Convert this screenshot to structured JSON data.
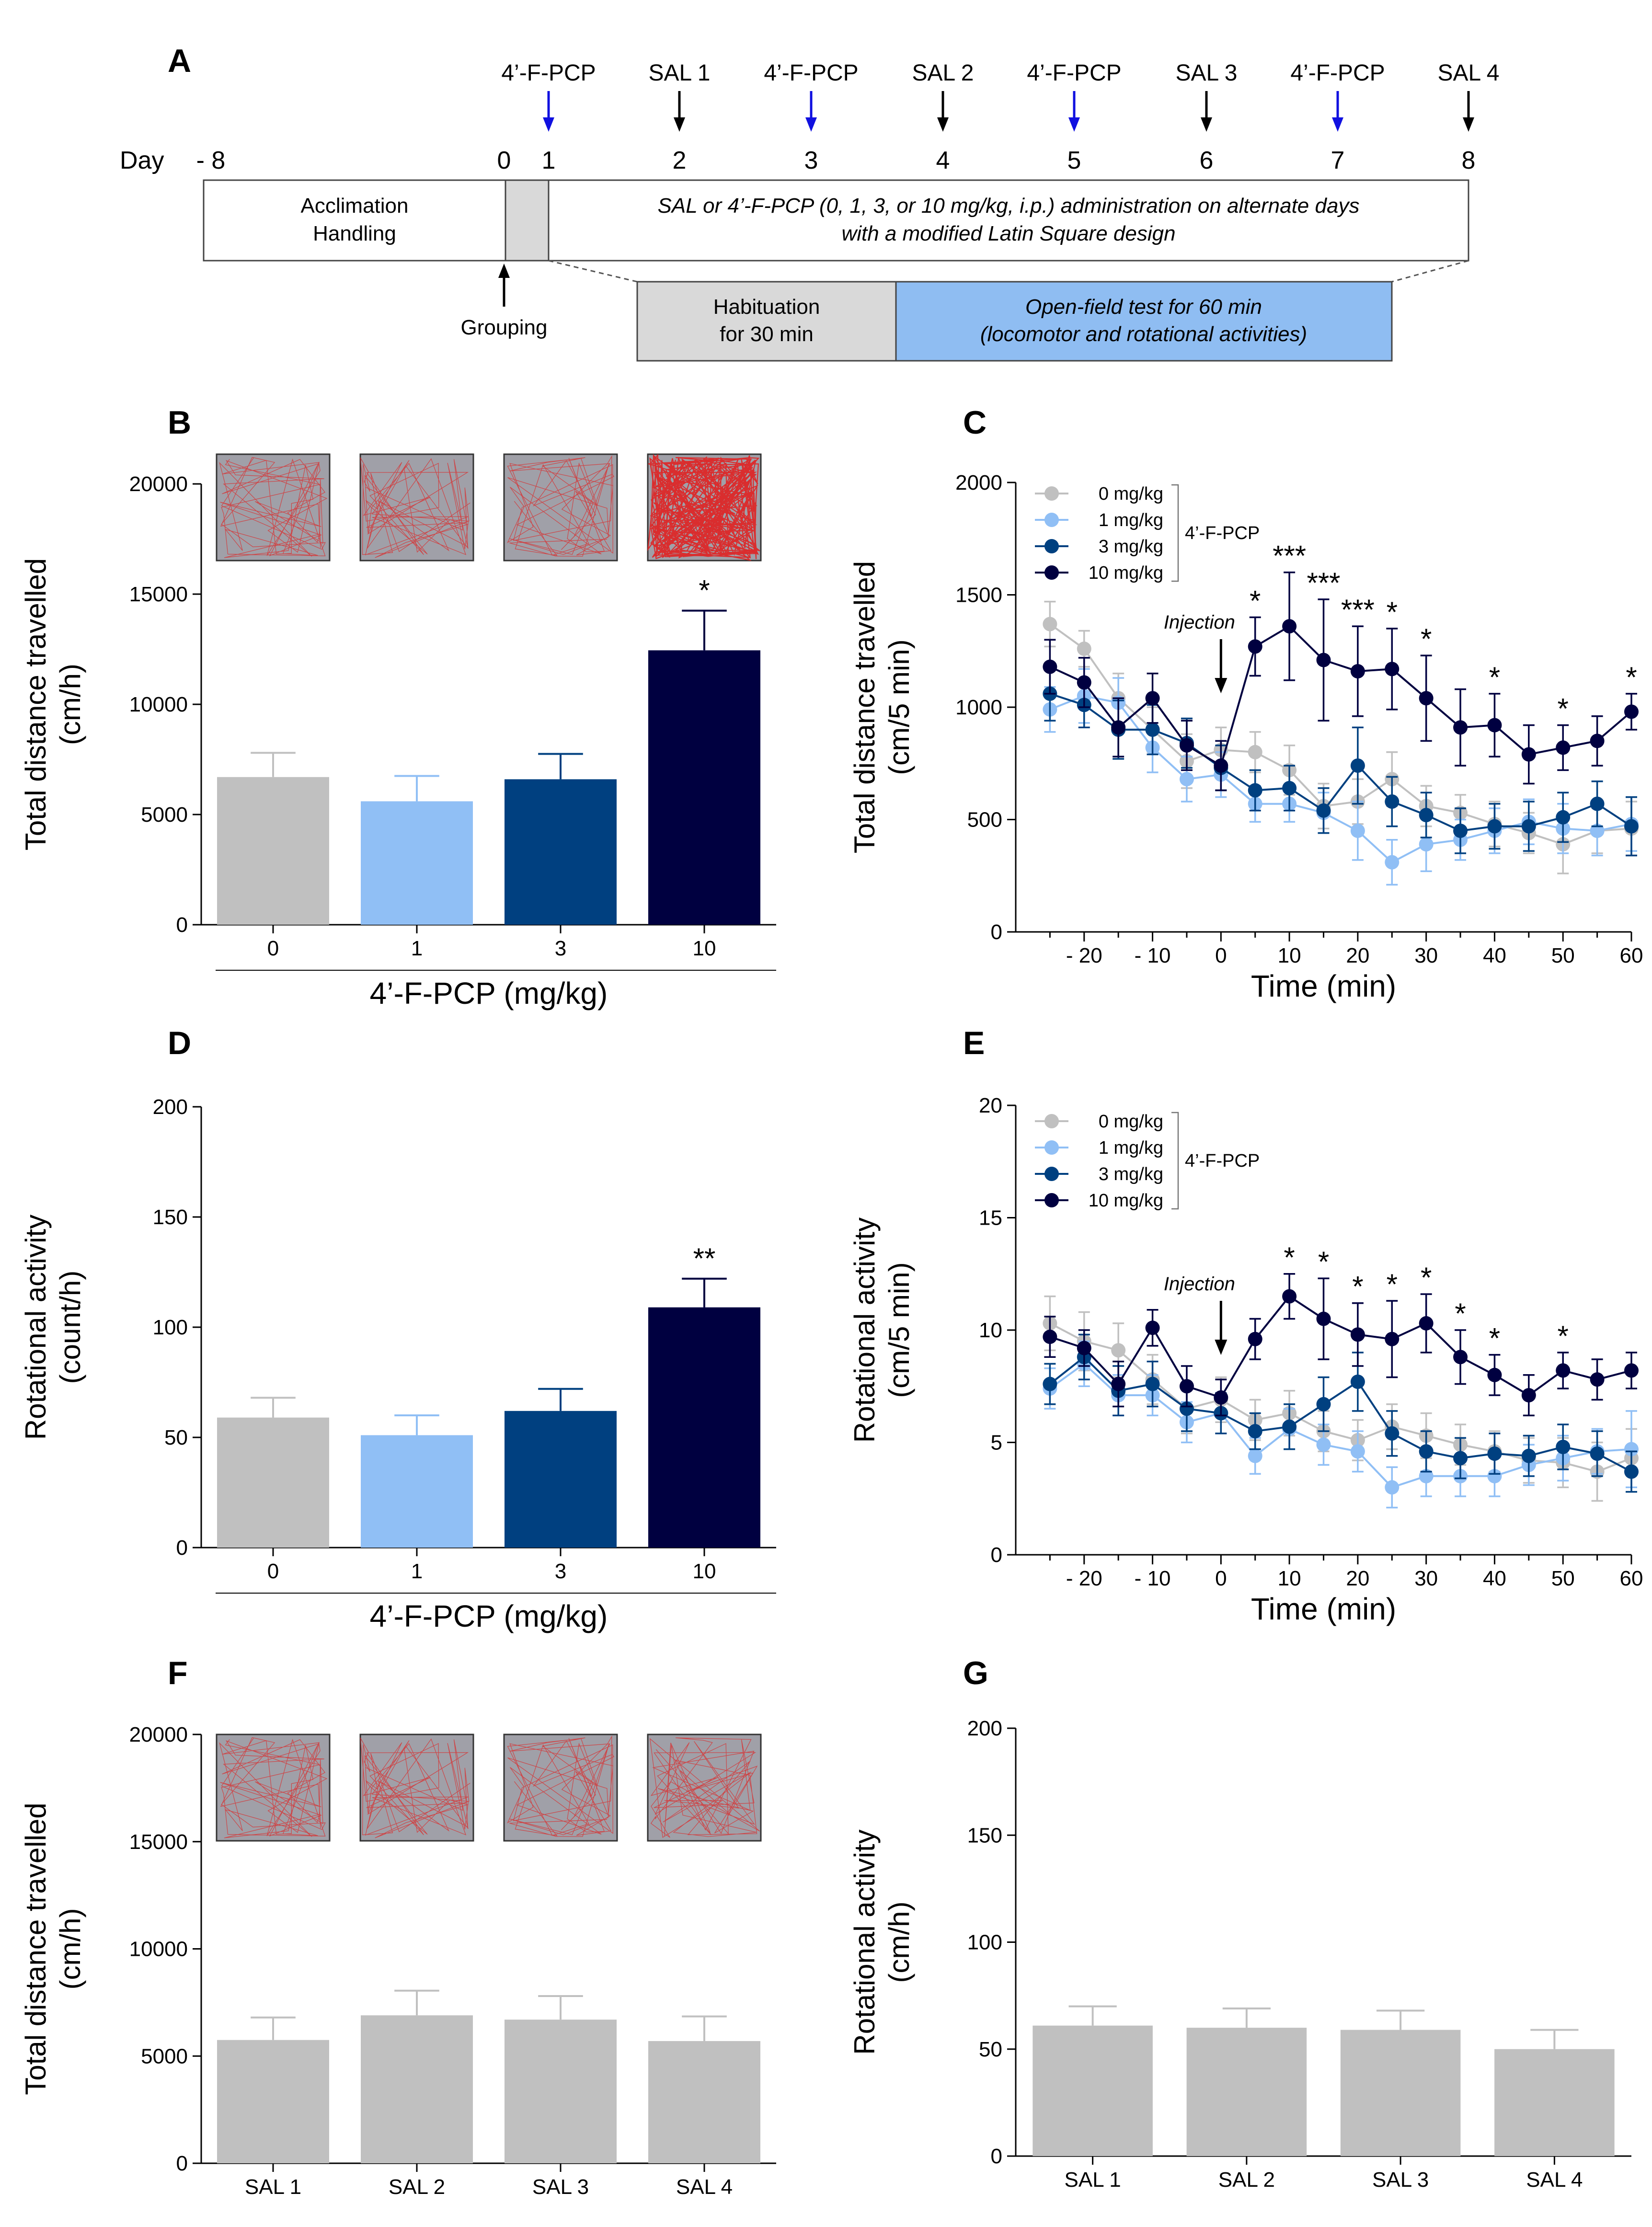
{
  "colors": {
    "c0": "#c0c0c0",
    "c1": "#90bff5",
    "c3": "#004080",
    "c10": "#000040",
    "blue_arrow": "#1010e0",
    "hab": "#d9d9d9",
    "test": "#8fbdf2"
  },
  "panel_a": {
    "label": "A",
    "day_label": "Day",
    "day_ticks": [
      "- 8",
      "0",
      "1",
      "2",
      "3",
      "4",
      "5",
      "6",
      "7",
      "8"
    ],
    "treatments": [
      {
        "label": "4’-F-PCP",
        "day": "1",
        "drug": true
      },
      {
        "label": "SAL 1",
        "day": "2",
        "drug": false
      },
      {
        "label": "4’-F-PCP",
        "day": "3",
        "drug": true
      },
      {
        "label": "SAL 2",
        "day": "4",
        "drug": false
      },
      {
        "label": "4’-F-PCP",
        "day": "5",
        "drug": true
      },
      {
        "label": "SAL 3",
        "day": "6",
        "drug": false
      },
      {
        "label": "4’-F-PCP",
        "day": "7",
        "drug": true
      },
      {
        "label": "SAL 4",
        "day": "8",
        "drug": false
      }
    ],
    "acclimation_line1": "Acclimation",
    "acclimation_line2": "Handling",
    "admin_line1": "SAL or 4’-F-PCP (0, 1, 3, or 10 mg/kg, i.p.) administration on alternate days",
    "admin_line2": "with a modified Latin Square design",
    "grouping": "Grouping",
    "habituation_line1": "Habituation",
    "habituation_line2": "for 30 min",
    "test_line1": "Open-field test for 60 min",
    "test_line2": "(locomotor and rotational activities)"
  },
  "chart_data": [
    {
      "id": "B",
      "type": "bar",
      "panel_label": "B",
      "ylabel_line1": "Total distance travelled",
      "ylabel_line2": "(cm/h)",
      "xlabel": "4’-F-PCP (mg/kg)",
      "categories": [
        "0",
        "1",
        "3",
        "10"
      ],
      "values": [
        6700,
        5600,
        6600,
        12450
      ],
      "errors": [
        1100,
        1150,
        1150,
        1800
      ],
      "significance": [
        "",
        "",
        "",
        "*"
      ],
      "ylim": [
        0,
        20000
      ],
      "yticks": [
        0,
        5000,
        10000,
        15000,
        20000
      ],
      "track_insets": true
    },
    {
      "id": "C",
      "type": "line",
      "panel_label": "C",
      "ylabel_line1": "Total distance travelled",
      "ylabel_line2": "(cm/5 min)",
      "xlabel": "Time (min)",
      "x": [
        -25,
        -20,
        -15,
        -10,
        -5,
        0,
        5,
        10,
        15,
        20,
        25,
        30,
        35,
        40,
        45,
        50,
        55,
        60
      ],
      "xlim": [
        -30,
        60
      ],
      "xticks": [
        -20,
        -10,
        0,
        10,
        20,
        30,
        40,
        50,
        60
      ],
      "xtick_labels": [
        "- 20",
        "- 10",
        "0",
        "10",
        "20",
        "30",
        "40",
        "50",
        "60"
      ],
      "ylim": [
        0,
        2000
      ],
      "yticks": [
        0,
        500,
        1000,
        1500,
        2000
      ],
      "annotation": "Injection",
      "legend_group": "4’-F-PCP",
      "series": [
        {
          "name": "0 mg/kg",
          "color_key": "c0",
          "values": [
            1370,
            1260,
            1040,
            900,
            760,
            810,
            800,
            720,
            560,
            580,
            680,
            560,
            530,
            480,
            440,
            390,
            450,
            460
          ],
          "errors": [
            100,
            80,
            110,
            100,
            120,
            100,
            90,
            110,
            100,
            100,
            120,
            90,
            80,
            100,
            90,
            130,
            100,
            120
          ]
        },
        {
          "name": "1 mg/kg",
          "color_key": "c1",
          "values": [
            990,
            1050,
            1020,
            820,
            680,
            700,
            570,
            570,
            530,
            450,
            310,
            390,
            410,
            450,
            490,
            460,
            450,
            480
          ],
          "errors": [
            100,
            120,
            110,
            110,
            100,
            100,
            80,
            80,
            90,
            130,
            100,
            120,
            90,
            100,
            100,
            110,
            110,
            120
          ]
        },
        {
          "name": "3 mg/kg",
          "color_key": "c3",
          "values": [
            1060,
            1010,
            900,
            900,
            840,
            730,
            630,
            640,
            540,
            740,
            580,
            520,
            450,
            470,
            470,
            510,
            570,
            470
          ],
          "errors": [
            120,
            100,
            130,
            110,
            110,
            100,
            90,
            100,
            100,
            170,
            110,
            100,
            100,
            100,
            110,
            110,
            100,
            130
          ]
        },
        {
          "name": "10 mg/kg",
          "color_key": "c10",
          "values": [
            1180,
            1110,
            910,
            1040,
            830,
            740,
            1270,
            1360,
            1210,
            1160,
            1170,
            1040,
            910,
            920,
            790,
            820,
            850,
            980
          ],
          "errors": [
            120,
            110,
            130,
            110,
            110,
            110,
            130,
            240,
            270,
            200,
            180,
            190,
            170,
            140,
            130,
            100,
            110,
            80
          ]
        }
      ],
      "significance": [
        {
          "x": 5,
          "label": "*"
        },
        {
          "x": 10,
          "label": "***"
        },
        {
          "x": 15,
          "label": "***"
        },
        {
          "x": 20,
          "label": "***"
        },
        {
          "x": 25,
          "label": "*"
        },
        {
          "x": 30,
          "label": "*"
        },
        {
          "x": 40,
          "label": "*"
        },
        {
          "x": 50,
          "label": "*"
        },
        {
          "x": 60,
          "label": "*"
        }
      ]
    },
    {
      "id": "D",
      "type": "bar",
      "panel_label": "D",
      "ylabel_line1": "Rotational activity",
      "ylabel_line2": "(count/h)",
      "xlabel": "4’-F-PCP (mg/kg)",
      "categories": [
        "0",
        "1",
        "3",
        "10"
      ],
      "values": [
        59,
        51,
        62,
        109
      ],
      "errors": [
        9,
        9,
        10,
        13
      ],
      "significance": [
        "",
        "",
        "",
        "**"
      ],
      "ylim": [
        0,
        200
      ],
      "yticks": [
        0,
        50,
        100,
        150,
        200
      ],
      "track_insets": false
    },
    {
      "id": "E",
      "type": "line",
      "panel_label": "E",
      "ylabel_line1": "Rotational activity",
      "ylabel_line2": "(cm/5 min)",
      "xlabel": "Time (min)",
      "x": [
        -25,
        -20,
        -15,
        -10,
        -5,
        0,
        5,
        10,
        15,
        20,
        25,
        30,
        35,
        40,
        45,
        50,
        55,
        60
      ],
      "xlim": [
        -30,
        60
      ],
      "xticks": [
        -20,
        -10,
        0,
        10,
        20,
        30,
        40,
        50,
        60
      ],
      "xtick_labels": [
        "- 20",
        "- 10",
        "0",
        "10",
        "20",
        "30",
        "40",
        "50",
        "60"
      ],
      "ylim": [
        0,
        20
      ],
      "yticks": [
        0,
        5,
        10,
        15,
        20
      ],
      "annotation": "Injection",
      "legend_group": "4’-F-PCP",
      "series": [
        {
          "name": "0 mg/kg",
          "color_key": "c0",
          "values": [
            10.3,
            9.5,
            9.1,
            7.8,
            6.5,
            6.9,
            6.0,
            6.3,
            5.5,
            5.1,
            5.7,
            5.3,
            4.9,
            4.6,
            4.2,
            4.1,
            3.7,
            4.3
          ],
          "errors": [
            1.2,
            1.3,
            1.2,
            1.1,
            1.1,
            1.0,
            0.9,
            1.0,
            0.9,
            0.9,
            1.0,
            1.0,
            0.9,
            0.9,
            1.0,
            1.1,
            1.3,
            1.3
          ]
        },
        {
          "name": "1 mg/kg",
          "color_key": "c1",
          "values": [
            7.4,
            8.5,
            7.1,
            7.1,
            5.9,
            6.3,
            4.4,
            5.6,
            4.9,
            4.6,
            3.0,
            3.5,
            3.5,
            3.5,
            4.0,
            4.3,
            4.6,
            4.7
          ],
          "errors": [
            0.9,
            1.0,
            0.9,
            0.9,
            0.9,
            0.9,
            0.8,
            0.9,
            0.9,
            0.9,
            0.9,
            0.9,
            0.9,
            0.9,
            0.9,
            1.0,
            1.0,
            1.7
          ]
        },
        {
          "name": "3 mg/kg",
          "color_key": "c3",
          "values": [
            7.6,
            8.8,
            7.3,
            7.6,
            6.5,
            6.3,
            5.5,
            5.7,
            6.7,
            7.7,
            5.4,
            4.6,
            4.3,
            4.5,
            4.4,
            4.8,
            4.5,
            3.7
          ],
          "errors": [
            0.9,
            1.0,
            1.1,
            1.0,
            1.0,
            0.9,
            0.8,
            1.0,
            1.2,
            1.3,
            1.0,
            0.9,
            0.9,
            0.9,
            0.9,
            1.0,
            1.0,
            0.9
          ]
        },
        {
          "name": "10 mg/kg",
          "color_key": "c10",
          "values": [
            9.7,
            9.2,
            7.6,
            10.1,
            7.5,
            7.0,
            9.6,
            11.5,
            10.5,
            9.8,
            9.6,
            10.3,
            8.8,
            8.0,
            7.1,
            8.2,
            7.8,
            8.2
          ],
          "errors": [
            0.9,
            0.8,
            1.0,
            0.8,
            0.9,
            0.8,
            0.9,
            1.0,
            1.8,
            1.4,
            1.7,
            1.3,
            1.2,
            0.9,
            0.9,
            0.8,
            0.9,
            0.8
          ]
        }
      ],
      "significance": [
        {
          "x": 10,
          "label": "*"
        },
        {
          "x": 15,
          "label": "*"
        },
        {
          "x": 20,
          "label": "*"
        },
        {
          "x": 25,
          "label": "*"
        },
        {
          "x": 30,
          "label": "*"
        },
        {
          "x": 35,
          "label": "*"
        },
        {
          "x": 40,
          "label": "*"
        },
        {
          "x": 50,
          "label": "*"
        }
      ]
    },
    {
      "id": "F",
      "type": "bar",
      "panel_label": "F",
      "ylabel_line1": "Total distance travelled",
      "ylabel_line2": "(cm/h)",
      "xlabel": "",
      "categories": [
        "SAL 1",
        "SAL 2",
        "SAL 3",
        "SAL 4"
      ],
      "values": [
        5750,
        6900,
        6700,
        5700
      ],
      "errors": [
        1050,
        1150,
        1100,
        1150
      ],
      "significance": [
        "",
        "",
        "",
        ""
      ],
      "ylim": [
        0,
        20000
      ],
      "yticks": [
        0,
        5000,
        10000,
        15000,
        20000
      ],
      "track_insets": true
    },
    {
      "id": "G",
      "type": "bar",
      "panel_label": "G",
      "ylabel_line1": "Rotational activity",
      "ylabel_line2": "(cm/h)",
      "xlabel": "",
      "categories": [
        "SAL 1",
        "SAL 2",
        "SAL 3",
        "SAL 4"
      ],
      "values": [
        61,
        60,
        59,
        50
      ],
      "errors": [
        9,
        9,
        9,
        9
      ],
      "significance": [
        "",
        "",
        "",
        ""
      ],
      "ylim": [
        0,
        200
      ],
      "yticks": [
        0,
        50,
        100,
        150,
        200
      ],
      "track_insets": false
    }
  ]
}
